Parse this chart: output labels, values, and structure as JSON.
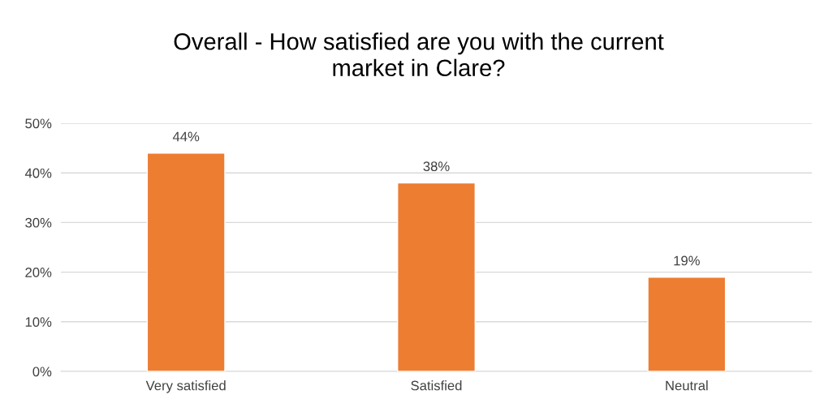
{
  "chart_data": {
    "type": "bar",
    "title": "Overall - How satisfied are you with the current\nmarket in Clare?",
    "categories": [
      "Very satisfied",
      "Satisfied",
      "Neutral"
    ],
    "values": [
      44,
      38,
      19
    ],
    "color": "#ed7d31",
    "value_labels": [
      "44%",
      "38%",
      "19%"
    ],
    "ylim": [
      0,
      50
    ],
    "yticks": [
      {
        "value": 0,
        "label": "0%"
      },
      {
        "value": 10,
        "label": "10%"
      },
      {
        "value": 20,
        "label": "20%"
      },
      {
        "value": 30,
        "label": "30%"
      },
      {
        "value": 40,
        "label": "40%"
      },
      {
        "value": 50,
        "label": "50%"
      }
    ],
    "grid": "y",
    "legend": false
  }
}
